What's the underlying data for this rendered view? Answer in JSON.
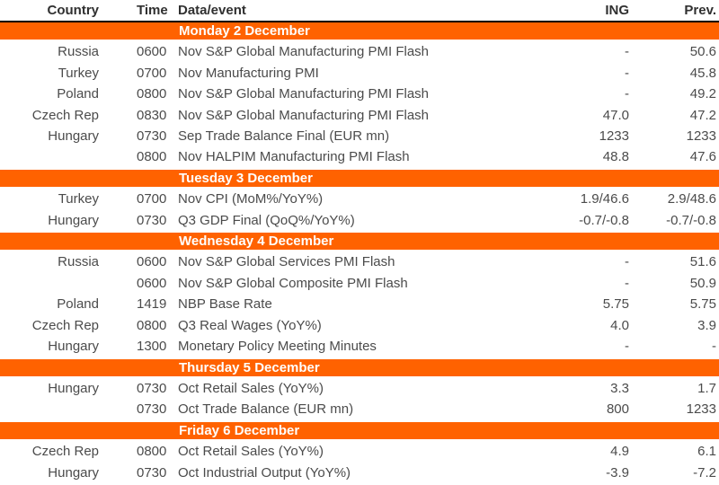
{
  "colors": {
    "accent_orange": "#FF6200",
    "body_text": "#4b4b4b",
    "header_text": "#303030",
    "banner_text": "#ffffff",
    "header_rule": "#000000"
  },
  "table": {
    "columns": [
      {
        "key": "country",
        "label": "Country"
      },
      {
        "key": "time",
        "label": "Time"
      },
      {
        "key": "event",
        "label": "Data/event"
      },
      {
        "key": "ing",
        "label": "ING"
      },
      {
        "key": "prev",
        "label": "Prev."
      }
    ],
    "sections": [
      {
        "title": "Monday 2 December",
        "rows": [
          {
            "country": "Russia",
            "time": "0600",
            "event": "Nov S&P Global Manufacturing PMI Flash",
            "ing": "-",
            "prev": "50.6"
          },
          {
            "country": "Turkey",
            "time": "0700",
            "event": "Nov Manufacturing PMI",
            "ing": "-",
            "prev": "45.8"
          },
          {
            "country": "Poland",
            "time": "0800",
            "event": "Nov S&P Global Manufacturing PMI Flash",
            "ing": "-",
            "prev": "49.2"
          },
          {
            "country": "Czech Rep",
            "time": "0830",
            "event": "Nov S&P Global Manufacturing PMI Flash",
            "ing": "47.0",
            "prev": "47.2"
          },
          {
            "country": "Hungary",
            "time": "0730",
            "event": "Sep Trade Balance Final (EUR mn)",
            "ing": "1233",
            "prev": "1233"
          },
          {
            "country": "",
            "time": "0800",
            "event": "Nov HALPIM Manufacturing PMI Flash",
            "ing": "48.8",
            "prev": "47.6"
          }
        ]
      },
      {
        "title": "Tuesday 3 December",
        "rows": [
          {
            "country": "Turkey",
            "time": "0700",
            "event": "Nov CPI (MoM%/YoY%)",
            "ing": "1.9/46.6",
            "prev": "2.9/48.6"
          },
          {
            "country": "Hungary",
            "time": "0730",
            "event": "Q3 GDP Final (QoQ%/YoY%)",
            "ing": "-0.7/-0.8",
            "prev": "-0.7/-0.8"
          }
        ]
      },
      {
        "title": "Wednesday 4 December",
        "rows": [
          {
            "country": "Russia",
            "time": "0600",
            "event": "Nov S&P Global Services PMI Flash",
            "ing": "-",
            "prev": "51.6"
          },
          {
            "country": "",
            "time": "0600",
            "event": "Nov S&P Global Composite PMI Flash",
            "ing": "-",
            "prev": "50.9"
          },
          {
            "country": "Poland",
            "time": "1419",
            "event": "NBP Base Rate",
            "ing": "5.75",
            "prev": "5.75"
          },
          {
            "country": "Czech Rep",
            "time": "0800",
            "event": "Q3 Real Wages (YoY%)",
            "ing": "4.0",
            "prev": "3.9"
          },
          {
            "country": "Hungary",
            "time": "1300",
            "event": "Monetary Policy Meeting Minutes",
            "ing": "-",
            "prev": "-"
          }
        ]
      },
      {
        "title": "Thursday 5 December",
        "rows": [
          {
            "country": "Hungary",
            "time": "0730",
            "event": "Oct Retail Sales (YoY%)",
            "ing": "3.3",
            "prev": "1.7"
          },
          {
            "country": "",
            "time": "0730",
            "event": "Oct Trade Balance (EUR mn)",
            "ing": "800",
            "prev": "1233"
          }
        ]
      },
      {
        "title": "Friday 6 December",
        "rows": [
          {
            "country": "Czech Rep",
            "time": "0800",
            "event": "Oct Retail Sales (YoY%)",
            "ing": "4.9",
            "prev": "6.1"
          },
          {
            "country": "Hungary",
            "time": "0730",
            "event": "Oct Industrial Output (YoY%)",
            "ing": "-3.9",
            "prev": "-7.2"
          }
        ]
      }
    ]
  }
}
